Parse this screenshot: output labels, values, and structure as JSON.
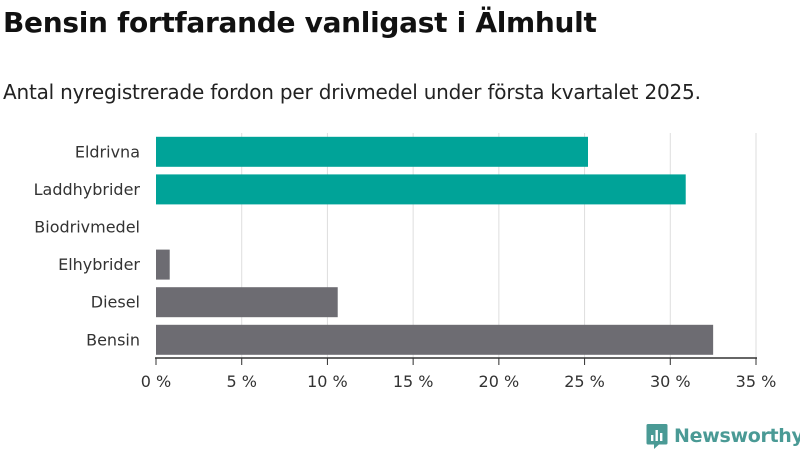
{
  "header": {
    "title": "Bensin fortfarande vanligast i Älmhult",
    "subtitle": "Antal nyregistrerade fordon per drivmedel under första kvartalet 2025."
  },
  "brand": {
    "name": "Newsworthy",
    "icon": "bar-chart-speech-bubble-icon",
    "color": "#4a9a95"
  },
  "chart_data": {
    "type": "bar",
    "orientation": "horizontal",
    "categories": [
      "Eldrivna",
      "Laddhybrider",
      "Biodrivmedel",
      "Elhybrider",
      "Diesel",
      "Bensin"
    ],
    "values": [
      25.2,
      30.9,
      0,
      0.8,
      10.6,
      32.5
    ],
    "bar_colors": [
      "#00a398",
      "#00a398",
      "#6d6c72",
      "#6d6c72",
      "#6d6c72",
      "#6d6c72"
    ],
    "x_ticks": [
      0,
      5,
      10,
      15,
      20,
      25,
      30,
      35
    ],
    "x_tick_labels": [
      "0 %",
      "5 %",
      "10 %",
      "15 %",
      "20 %",
      "25 %",
      "30 %",
      "35 %"
    ],
    "xlim": [
      0,
      35
    ],
    "grid": true,
    "grid_color": "#dedede",
    "axis_color": "#333333"
  }
}
